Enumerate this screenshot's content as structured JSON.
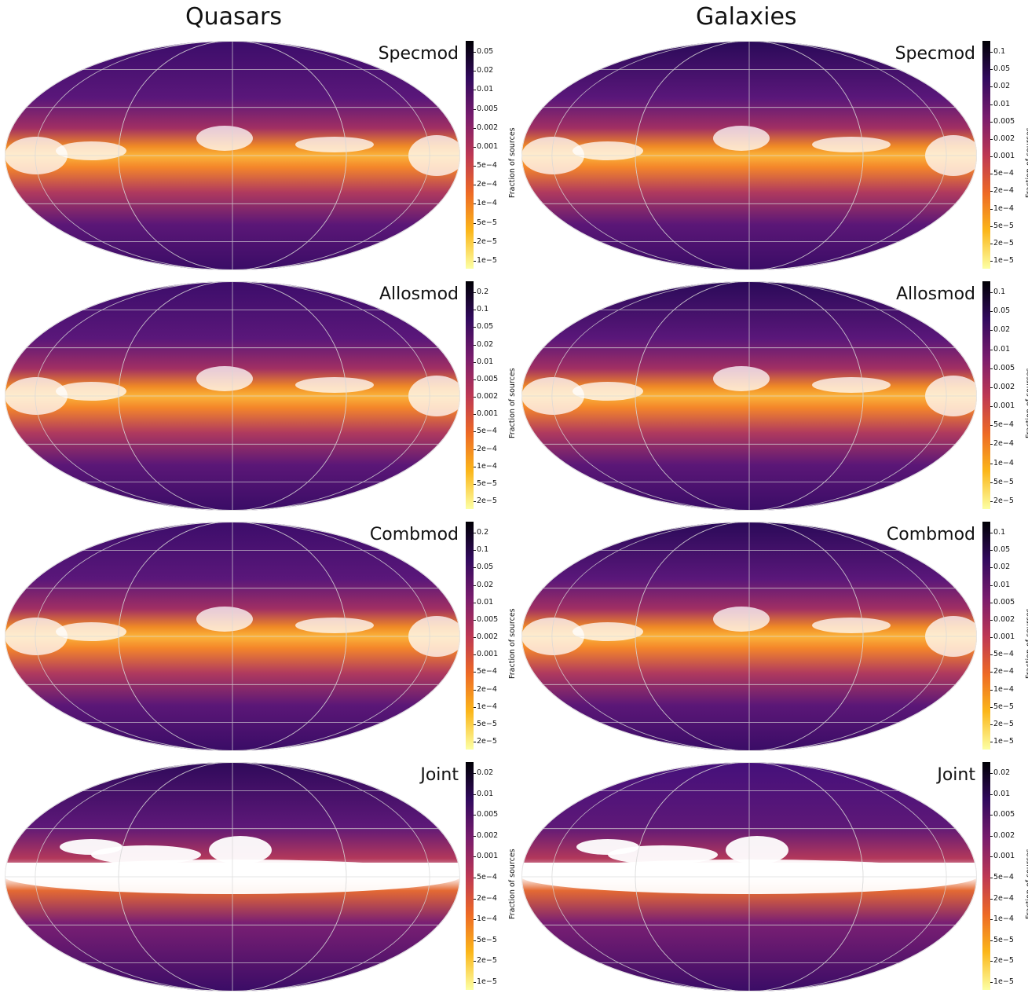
{
  "columns": [
    "Quasars",
    "Galaxies"
  ],
  "colorbar_label": "Fraction of sources",
  "colormap": [
    "#fcffa4",
    "#fbb61a",
    "#ed6925",
    "#bc3754",
    "#781c6d",
    "#320a5e",
    "#000004"
  ],
  "chart_data": [
    {
      "type": "heatmap",
      "projection": "Mollweide",
      "column": "Quasars",
      "row": "Specmod",
      "title": "Specmod",
      "colorbar": {
        "label": "Fraction of sources",
        "scale": "log",
        "ticks": [
          "0.05",
          "0.02",
          "0.01",
          "0.005",
          "0.002",
          "0.001",
          "5e−4",
          "2e−4",
          "1e−4",
          "5e−5",
          "2e−5",
          "1e−5"
        ]
      }
    },
    {
      "type": "heatmap",
      "projection": "Mollweide",
      "column": "Galaxies",
      "row": "Specmod",
      "title": "Specmod",
      "colorbar": {
        "label": "Fraction of sources",
        "scale": "log",
        "ticks": [
          "0.1",
          "0.05",
          "0.02",
          "0.01",
          "0.005",
          "0.002",
          "0.001",
          "5e−4",
          "2e−4",
          "1e−4",
          "5e−5",
          "2e−5",
          "1e−5"
        ]
      }
    },
    {
      "type": "heatmap",
      "projection": "Mollweide",
      "column": "Quasars",
      "row": "Allosmod",
      "title": "Allosmod",
      "colorbar": {
        "label": "Fraction of sources",
        "scale": "log",
        "ticks": [
          "0.2",
          "0.1",
          "0.05",
          "0.02",
          "0.01",
          "0.005",
          "0.002",
          "0.001",
          "5e−4",
          "2e−4",
          "1e−4",
          "5e−5",
          "2e−5"
        ]
      }
    },
    {
      "type": "heatmap",
      "projection": "Mollweide",
      "column": "Galaxies",
      "row": "Allosmod",
      "title": "Allosmod",
      "colorbar": {
        "label": "Fraction of sources",
        "scale": "log",
        "ticks": [
          "0.1",
          "0.05",
          "0.02",
          "0.01",
          "0.005",
          "0.002",
          "0.001",
          "5e−4",
          "2e−4",
          "1e−4",
          "5e−5",
          "2e−5"
        ]
      }
    },
    {
      "type": "heatmap",
      "projection": "Mollweide",
      "column": "Quasars",
      "row": "Combmod",
      "title": "Combmod",
      "colorbar": {
        "label": "Fraction of sources",
        "scale": "log",
        "ticks": [
          "0.2",
          "0.1",
          "0.05",
          "0.02",
          "0.01",
          "0.005",
          "0.002",
          "0.001",
          "5e−4",
          "2e−4",
          "1e−4",
          "5e−5",
          "2e−5"
        ]
      }
    },
    {
      "type": "heatmap",
      "projection": "Mollweide",
      "column": "Galaxies",
      "row": "Combmod",
      "title": "Combmod",
      "colorbar": {
        "label": "Fraction of sources",
        "scale": "log",
        "ticks": [
          "0.1",
          "0.05",
          "0.02",
          "0.01",
          "0.005",
          "0.002",
          "0.001",
          "5e−4",
          "2e−4",
          "1e−4",
          "5e−5",
          "2e−5",
          "1e−5"
        ]
      }
    },
    {
      "type": "heatmap",
      "projection": "Mollweide",
      "column": "Quasars",
      "row": "Joint",
      "title": "Joint",
      "colorbar": {
        "label": "Fraction of sources",
        "scale": "log",
        "ticks": [
          "0.02",
          "0.01",
          "0.005",
          "0.002",
          "0.001",
          "5e−4",
          "2e−4",
          "1e−4",
          "5e−5",
          "2e−5",
          "1e−5"
        ]
      }
    },
    {
      "type": "heatmap",
      "projection": "Mollweide",
      "column": "Galaxies",
      "row": "Joint",
      "title": "Joint",
      "colorbar": {
        "label": "Fraction of sources",
        "scale": "log",
        "ticks": [
          "0.02",
          "0.01",
          "0.005",
          "0.002",
          "0.001",
          "5e−4",
          "2e−4",
          "1e−4",
          "5e−5",
          "2e−5",
          "1e−5"
        ]
      }
    }
  ]
}
